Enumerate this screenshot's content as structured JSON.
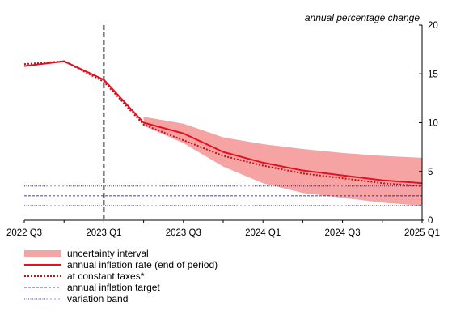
{
  "chart_data": {
    "type": "line",
    "unit_label": "annual percentage change",
    "x": [
      "2022 Q3",
      "2022 Q4",
      "2023 Q1",
      "2023 Q2",
      "2023 Q3",
      "2023 Q4",
      "2024 Q1",
      "2024 Q2",
      "2024 Q3",
      "2024 Q4",
      "2025 Q1"
    ],
    "x_tick_labels": [
      "2022 Q3",
      "2023 Q1",
      "2023 Q3",
      "2024 Q1",
      "2024 Q3",
      "2025 Q1"
    ],
    "ylim": [
      0,
      20
    ],
    "y_ticks": [
      0,
      5,
      10,
      15,
      20
    ],
    "y_axis_position": "right",
    "grid": false,
    "legend_position": "bottom-left",
    "series": [
      {
        "name": "annual inflation rate (end of period)",
        "style": "solid",
        "color": "#e8101e",
        "values": [
          15.8,
          16.3,
          14.4,
          10.0,
          8.9,
          7.0,
          5.9,
          5.1,
          4.6,
          4.1,
          3.8
        ]
      },
      {
        "name": "at constant taxes*",
        "style": "dotted",
        "color": "#c4101a",
        "values": [
          16.0,
          16.3,
          14.2,
          9.8,
          8.2,
          6.6,
          5.6,
          4.8,
          4.3,
          3.8,
          3.5
        ]
      }
    ],
    "uncertainty_interval": {
      "name": "uncertainty interval",
      "color": "#f5a3a3",
      "x": [
        "2023 Q2",
        "2023 Q3",
        "2023 Q4",
        "2024 Q1",
        "2024 Q2",
        "2024 Q3",
        "2024 Q4",
        "2025 Q1"
      ],
      "lower": [
        9.7,
        7.9,
        5.5,
        3.8,
        2.8,
        2.3,
        1.8,
        1.5
      ],
      "upper": [
        10.6,
        9.9,
        8.5,
        7.8,
        7.3,
        6.9,
        6.6,
        6.4
      ]
    },
    "target": {
      "name": "annual inflation target",
      "value": 2.5,
      "color": "#0000b0",
      "style": "dashed"
    },
    "variation_band": {
      "name": "variation band",
      "values": [
        1.5,
        3.5
      ],
      "color": "#0000b0",
      "style": "dotted"
    },
    "vertical_marker": {
      "x": "2023 Q1",
      "style": "dashed",
      "color": "#000000"
    },
    "legend": [
      {
        "label": "uncertainty interval",
        "kind": "band"
      },
      {
        "label": "annual inflation rate (end of period)",
        "kind": "solid"
      },
      {
        "label": "at constant taxes*",
        "kind": "dotted"
      },
      {
        "label": "annual inflation target",
        "kind": "target"
      },
      {
        "label": "variation band",
        "kind": "band-line"
      }
    ]
  }
}
